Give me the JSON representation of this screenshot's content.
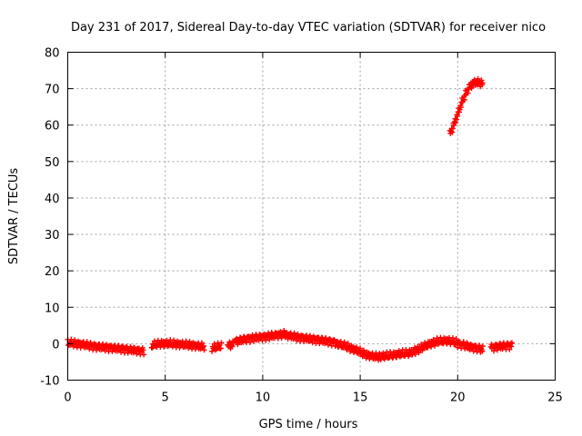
{
  "chart_data": {
    "type": "scatter",
    "title": "Day 231 of 2017, Sidereal Day-to-day VTEC variation (SDTVAR) for receiver nico",
    "xlabel": "GPS time / hours",
    "ylabel": "SDTVAR / TECUs",
    "xlim": [
      0,
      25
    ],
    "ylim": [
      -10,
      80
    ],
    "xticks": [
      0,
      5,
      10,
      15,
      20,
      25
    ],
    "yticks": [
      -10,
      0,
      10,
      20,
      30,
      40,
      50,
      60,
      70,
      80
    ],
    "xtick_labels": [
      "0",
      "5",
      "10",
      "15",
      "20",
      "25"
    ],
    "ytick_labels": [
      "-10",
      "0",
      "10",
      "20",
      "30",
      "40",
      "50",
      "60",
      "70",
      "80"
    ],
    "grid": true,
    "marker": "plus",
    "color": "#ff0000",
    "series": [
      {
        "name": "SDTVAR",
        "segments": [
          {
            "x_start": 0.0,
            "x_end": 3.9,
            "x": [
              0.0,
              0.5,
              1.0,
              1.5,
              2.0,
              2.5,
              3.0,
              3.5,
              3.9
            ],
            "y": [
              0.3,
              0.0,
              -0.4,
              -0.8,
              -1.0,
              -1.2,
              -1.5,
              -1.8,
              -2.0
            ]
          },
          {
            "x_start": 4.3,
            "x_end": 7.0,
            "x": [
              4.3,
              4.8,
              5.3,
              5.8,
              6.3,
              6.8,
              7.0
            ],
            "y": [
              -0.5,
              0.0,
              0.0,
              -0.2,
              -0.4,
              -0.7,
              -0.8
            ]
          },
          {
            "x_start": 7.4,
            "x_end": 7.9,
            "x": [
              7.4,
              7.6,
              7.9
            ],
            "y": [
              -1.2,
              -1.0,
              -0.6
            ]
          },
          {
            "x_start": 8.2,
            "x_end": 8.5,
            "x": [
              8.2,
              8.5
            ],
            "y": [
              -0.6,
              -0.2
            ]
          },
          {
            "x_start": 8.6,
            "x_end": 11.2,
            "x": [
              8.6,
              9.0,
              9.5,
              10.0,
              10.5,
              11.0,
              11.2
            ],
            "y": [
              0.6,
              1.2,
              1.6,
              1.9,
              2.2,
              2.6,
              2.7
            ]
          },
          {
            "x_start": 11.2,
            "x_end": 13.8,
            "x": [
              11.2,
              11.8,
              12.4,
              13.0,
              13.5,
              13.8
            ],
            "y": [
              2.4,
              1.8,
              1.4,
              1.0,
              0.6,
              0.2
            ]
          },
          {
            "x_start": 13.8,
            "x_end": 16.0,
            "x": [
              13.8,
              14.3,
              14.8,
              15.2,
              15.6,
              16.0
            ],
            "y": [
              0.0,
              -0.8,
              -1.8,
              -2.8,
              -3.4,
              -3.6
            ]
          },
          {
            "x_start": 16.0,
            "x_end": 17.8,
            "x": [
              16.0,
              16.5,
              17.0,
              17.5,
              17.8
            ],
            "y": [
              -3.6,
              -3.3,
              -2.9,
              -2.6,
              -2.0
            ]
          },
          {
            "x_start": 17.8,
            "x_end": 20.0,
            "x": [
              17.8,
              18.2,
              18.6,
              19.0,
              19.5,
              20.0
            ],
            "y": [
              -2.0,
              -1.0,
              0.0,
              0.6,
              0.8,
              0.2
            ]
          },
          {
            "x_start": 20.0,
            "x_end": 21.3,
            "x": [
              20.0,
              20.3,
              20.6,
              21.0,
              21.3
            ],
            "y": [
              0.0,
              -0.3,
              -0.8,
              -1.2,
              -1.6
            ]
          },
          {
            "x_start": 21.7,
            "x_end": 22.8,
            "x": [
              21.7,
              22.0,
              22.3,
              22.6,
              22.8
            ],
            "y": [
              -1.0,
              -0.8,
              -0.6,
              -0.5,
              -0.4
            ]
          },
          {
            "x_start": 19.6,
            "x_end": 21.3,
            "x": [
              19.6,
              19.8,
              20.0,
              20.2,
              20.4,
              20.6,
              20.8,
              21.0,
              21.2,
              21.3
            ],
            "y": [
              57.5,
              60.0,
              63.0,
              66.0,
              68.5,
              70.5,
              71.5,
              71.8,
              71.5,
              71.2
            ]
          }
        ]
      }
    ]
  }
}
